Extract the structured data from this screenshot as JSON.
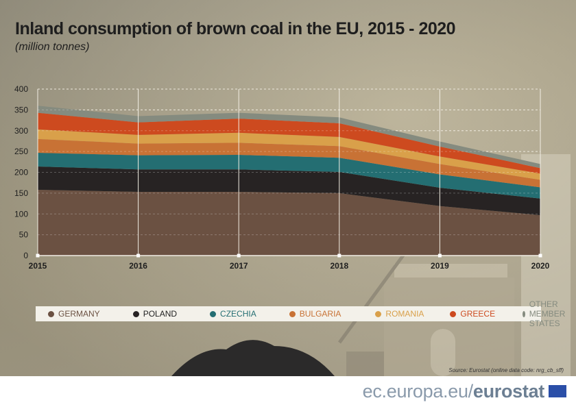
{
  "title": "Inland consumption of brown coal in the EU, 2015 - 2020",
  "subtitle": "(million tonnes)",
  "source": "Source: Eurostat (online data code: nrg_cb_sff)",
  "footer": {
    "url_prefix": "ec.europa.eu/",
    "url_brand": "eurostat"
  },
  "chart_data": {
    "type": "area",
    "stacked": true,
    "title": "Inland consumption of brown coal in the EU, 2015 - 2020",
    "subtitle": "(million tonnes)",
    "x": [
      "2015",
      "2016",
      "2017",
      "2018",
      "2019",
      "2020"
    ],
    "ylim": [
      0,
      400
    ],
    "yticks": [
      0,
      50,
      100,
      150,
      200,
      250,
      300,
      350,
      400
    ],
    "grid": true,
    "legend_position": "bottom",
    "series": [
      {
        "name": "GERMANY",
        "color": "#6b5142",
        "values": [
          158,
          153,
          153,
          150,
          119,
          97
        ]
      },
      {
        "name": "POLAND",
        "color": "#272323",
        "values": [
          56,
          54,
          54,
          51,
          44,
          40
        ]
      },
      {
        "name": "CZECHIA",
        "color": "#246e72",
        "values": [
          33,
          34,
          35,
          34,
          32,
          27
        ]
      },
      {
        "name": "BULGARIA",
        "color": "#c87235",
        "values": [
          33,
          28,
          29,
          28,
          25,
          18
        ]
      },
      {
        "name": "ROMANIA",
        "color": "#d9a04a",
        "values": [
          23,
          21,
          24,
          22,
          18,
          15
        ]
      },
      {
        "name": "GREECE",
        "color": "#cd4a1f",
        "values": [
          40,
          30,
          34,
          33,
          24,
          13
        ]
      },
      {
        "name": "OTHER MEMBER STATES",
        "color": "#858b7f",
        "values": [
          17,
          15,
          14,
          14,
          12,
          10
        ]
      }
    ]
  }
}
